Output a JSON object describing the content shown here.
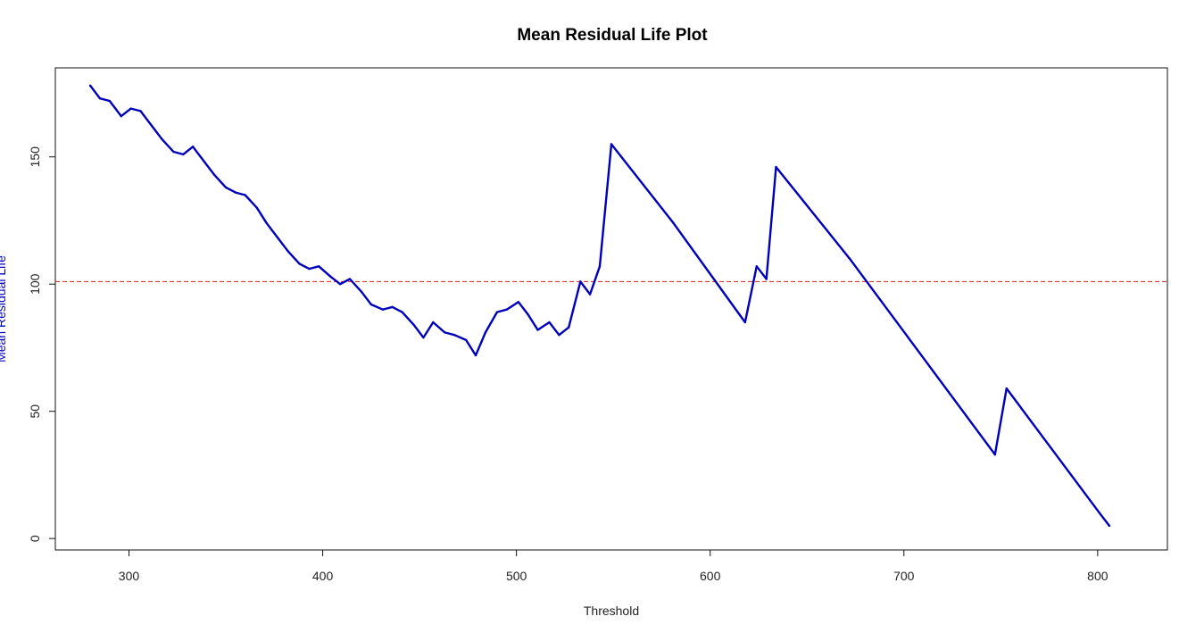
{
  "chart_data": {
    "type": "line",
    "title": "Mean Residual Life Plot",
    "xlabel": "Threshold",
    "ylabel": "Mean Residual Life",
    "xlim": [
      262,
      836
    ],
    "ylim": [
      -4.5,
      185
    ],
    "x_ticks": [
      300,
      400,
      500,
      600,
      700,
      800
    ],
    "y_ticks": [
      0,
      50,
      100,
      150
    ],
    "reference_line": {
      "y": 101,
      "color": "#cc2222",
      "style": "dashed"
    },
    "series": [
      {
        "name": "Mean Residual Life",
        "color": "#0000bb",
        "x": [
          280,
          285,
          290,
          296,
          301,
          306,
          312,
          317,
          323,
          328,
          333,
          339,
          344,
          350,
          355,
          360,
          366,
          371,
          377,
          382,
          388,
          393,
          398,
          404,
          409,
          414,
          420,
          425,
          431,
          436,
          441,
          447,
          452,
          457,
          463,
          468,
          474,
          479,
          484,
          490,
          495,
          501,
          506,
          511,
          517,
          522,
          527,
          533,
          538,
          543,
          549,
          581,
          618,
          624,
          629,
          634,
          672,
          747,
          753,
          801,
          806
        ],
        "y": [
          178,
          173,
          172,
          166,
          169,
          168,
          162,
          157,
          152,
          151,
          154,
          148,
          143,
          138,
          136,
          135,
          130,
          124,
          118,
          113,
          108,
          106,
          107,
          103,
          100,
          102,
          97,
          92,
          90,
          91,
          89,
          84,
          79,
          85,
          81,
          80,
          78,
          72,
          81,
          89,
          90,
          93,
          88,
          82,
          85,
          80,
          83,
          101,
          96,
          107,
          155,
          124,
          85,
          107,
          102,
          146,
          110,
          33,
          59,
          10,
          5
        ]
      }
    ]
  }
}
